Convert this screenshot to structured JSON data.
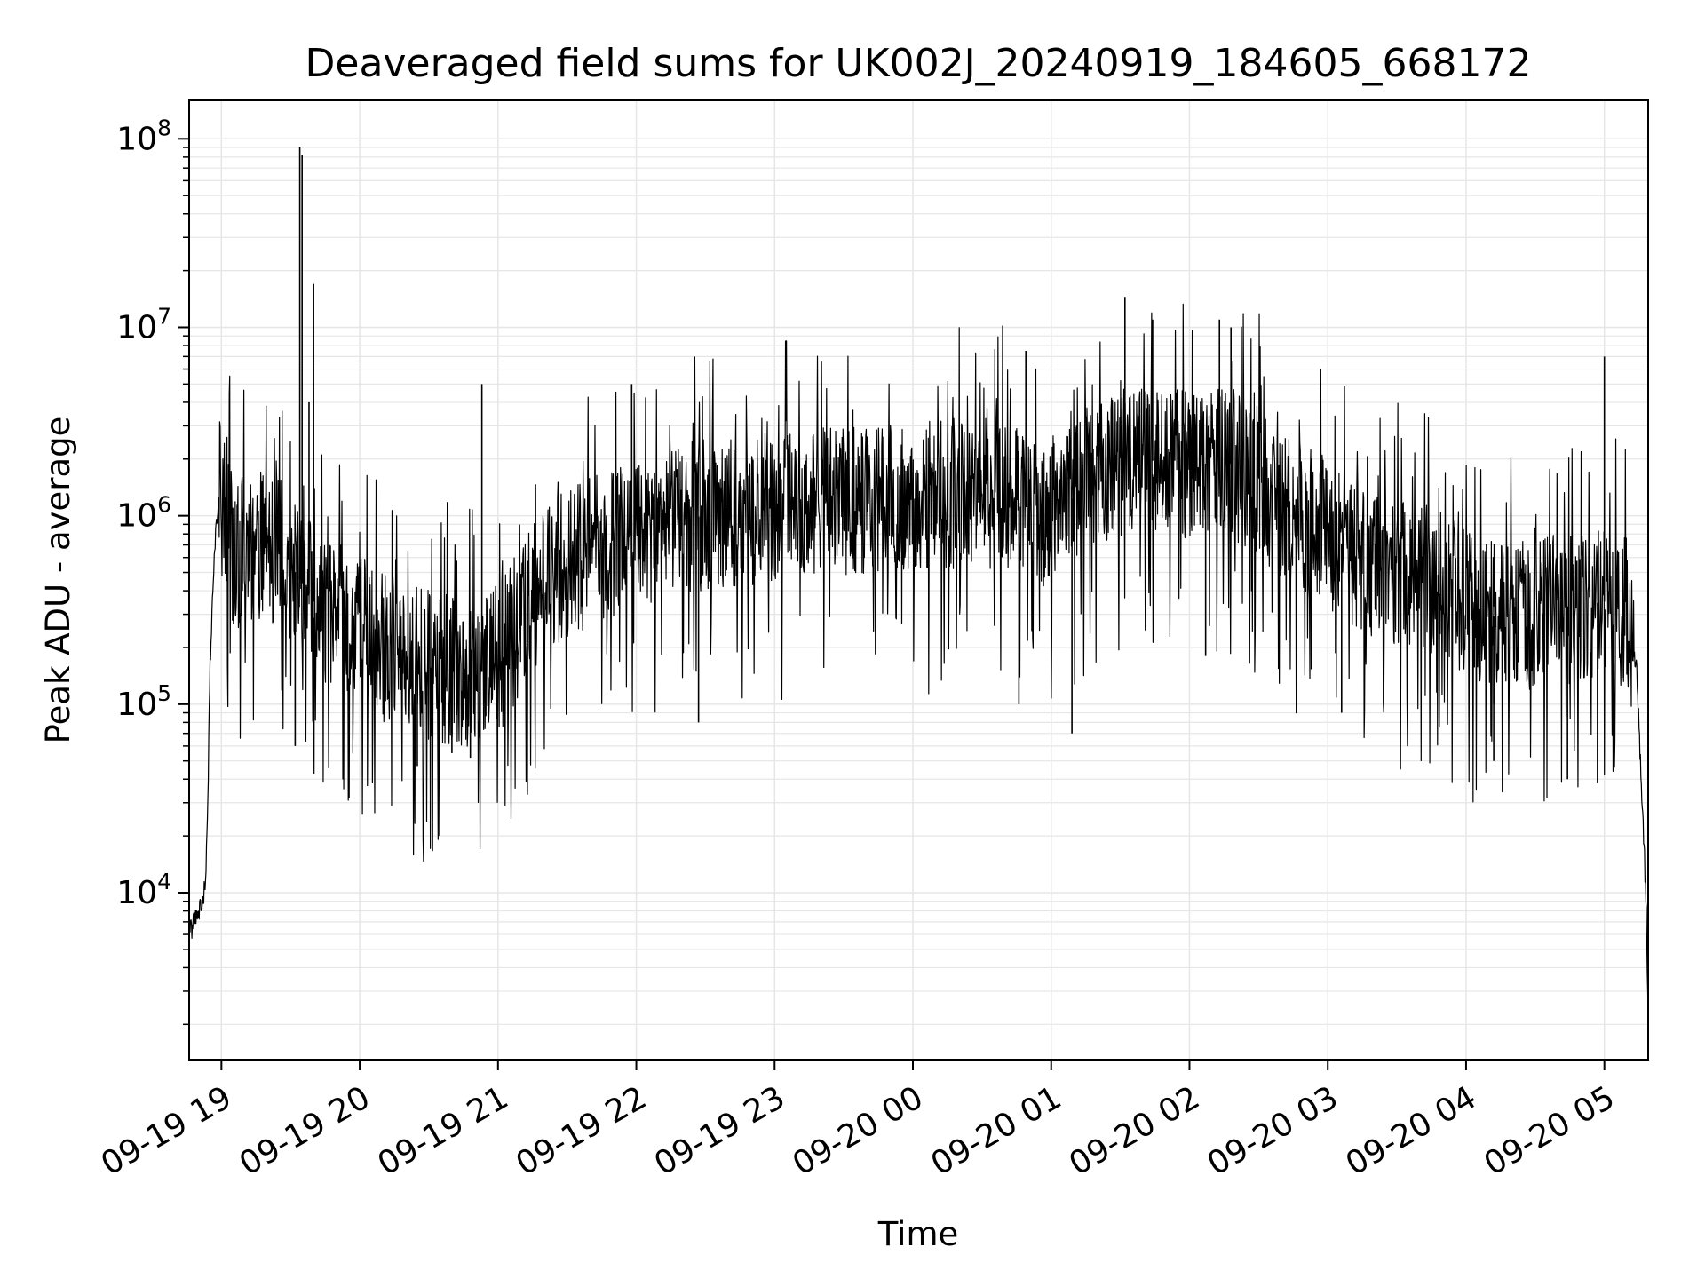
{
  "chart_data": {
    "type": "line",
    "title": "Deaveraged field sums for UK002J_20240919_184605_668172",
    "xlabel": "Time",
    "ylabel": "Peak ADU - average",
    "y_scale": "log",
    "ylim": [
      1300,
      160000000
    ],
    "xlim": [
      "2024-09-19 18:46",
      "2024-09-20 05:19"
    ],
    "grid": true,
    "legend": "none",
    "line_color": "#000000",
    "grid_color": "#e6e6e6",
    "x_ticks": [
      {
        "t": "2024-09-19 19:00",
        "label": "09-19 19"
      },
      {
        "t": "2024-09-19 20:00",
        "label": "09-19 20"
      },
      {
        "t": "2024-09-19 21:00",
        "label": "09-19 21"
      },
      {
        "t": "2024-09-19 22:00",
        "label": "09-19 22"
      },
      {
        "t": "2024-09-19 23:00",
        "label": "09-19 23"
      },
      {
        "t": "2024-09-20 00:00",
        "label": "09-20 00"
      },
      {
        "t": "2024-09-20 01:00",
        "label": "09-20 01"
      },
      {
        "t": "2024-09-20 02:00",
        "label": "09-20 02"
      },
      {
        "t": "2024-09-20 03:00",
        "label": "09-20 03"
      },
      {
        "t": "2024-09-20 04:00",
        "label": "09-20 04"
      },
      {
        "t": "2024-09-20 05:00",
        "label": "09-20 05"
      }
    ],
    "y_ticks": [
      {
        "value": 10000,
        "base": "10",
        "exp": "4"
      },
      {
        "value": 100000,
        "base": "10",
        "exp": "5"
      },
      {
        "value": 1000000,
        "base": "10",
        "exp": "6"
      },
      {
        "value": 10000000,
        "base": "10",
        "exp": "7"
      },
      {
        "value": 100000000,
        "base": "10",
        "exp": "8"
      }
    ],
    "series": [
      {
        "points": [
          [
            "2024-09-19 18:46",
            6000
          ],
          [
            "2024-09-19 18:48",
            7000
          ],
          [
            "2024-09-19 18:50",
            8000
          ],
          [
            "2024-09-19 18:52",
            9500
          ],
          [
            "2024-09-19 18:53",
            11000
          ],
          [
            "2024-09-19 18:54",
            25000
          ],
          [
            "2024-09-19 18:55",
            150000
          ],
          [
            "2024-09-19 18:57",
            700000
          ],
          [
            "2024-09-19 18:59",
            1300000
          ],
          [
            "2024-09-19 19:00",
            1200000
          ],
          [
            "2024-09-19 19:03",
            1000000
          ],
          [
            "2024-09-19 19:05",
            600000
          ],
          [
            "2024-09-19 19:15",
            700000
          ],
          [
            "2024-09-19 19:25",
            650000
          ],
          [
            "2024-09-19 19:30",
            550000
          ],
          [
            "2024-09-19 19:40",
            350000
          ],
          [
            "2024-09-19 19:50",
            300000
          ],
          [
            "2024-09-19 20:00",
            250000
          ],
          [
            "2024-09-19 20:10",
            200000
          ],
          [
            "2024-09-19 20:20",
            180000
          ],
          [
            "2024-09-19 20:30",
            160000
          ],
          [
            "2024-09-19 20:40",
            150000
          ],
          [
            "2024-09-19 20:50",
            140000
          ],
          [
            "2024-09-19 21:00",
            170000
          ],
          [
            "2024-09-19 21:10",
            280000
          ],
          [
            "2024-09-19 21:20",
            450000
          ],
          [
            "2024-09-19 21:30",
            550000
          ],
          [
            "2024-09-19 21:45",
            700000
          ],
          [
            "2024-09-19 22:00",
            800000
          ],
          [
            "2024-09-19 22:15",
            950000
          ],
          [
            "2024-09-19 22:30",
            1000000
          ],
          [
            "2024-09-19 22:45",
            1050000
          ],
          [
            "2024-09-19 23:00",
            1100000
          ],
          [
            "2024-09-19 23:20",
            1150000
          ],
          [
            "2024-09-19 23:40",
            1200000
          ],
          [
            "2024-09-20 00:00",
            1250000
          ],
          [
            "2024-09-20 00:20",
            1300000
          ],
          [
            "2024-09-20 00:40",
            1300000
          ],
          [
            "2024-09-20 00:55",
            1000000
          ],
          [
            "2024-09-20 01:05",
            1100000
          ],
          [
            "2024-09-20 01:20",
            1700000
          ],
          [
            "2024-09-20 01:40",
            2000000
          ],
          [
            "2024-09-20 02:00",
            1800000
          ],
          [
            "2024-09-20 02:15",
            2000000
          ],
          [
            "2024-09-20 02:30",
            1500000
          ],
          [
            "2024-09-20 02:45",
            1000000
          ],
          [
            "2024-09-20 03:00",
            800000
          ],
          [
            "2024-09-20 03:15",
            600000
          ],
          [
            "2024-09-20 03:30",
            500000
          ],
          [
            "2024-09-20 03:45",
            450000
          ],
          [
            "2024-09-20 04:00",
            350000
          ],
          [
            "2024-09-20 04:15",
            280000
          ],
          [
            "2024-09-20 04:30",
            300000
          ],
          [
            "2024-09-20 04:45",
            320000
          ],
          [
            "2024-09-20 05:00",
            350000
          ],
          [
            "2024-09-20 05:10",
            300000
          ],
          [
            "2024-09-20 05:14",
            150000
          ],
          [
            "2024-09-20 05:16",
            40000
          ],
          [
            "2024-09-20 05:18",
            10000
          ],
          [
            "2024-09-20 05:19",
            2300
          ]
        ]
      }
    ],
    "spikes": [
      [
        "2024-09-19 19:34",
        90000000
      ],
      [
        "2024-09-19 19:35",
        82000000
      ],
      [
        "2024-09-19 19:40",
        17000000
      ],
      [
        "2024-09-19 19:38",
        4000000
      ],
      [
        "2024-09-19 20:53",
        5000000
      ],
      [
        "2024-09-19 21:58",
        5000000
      ],
      [
        "2024-09-20 00:49",
        7500000
      ],
      [
        "2024-09-20 01:32",
        14500000
      ],
      [
        "2024-09-20 01:44",
        11000000
      ],
      [
        "2024-09-20 02:13",
        11000000
      ],
      [
        "2024-09-20 02:18",
        10000000
      ],
      [
        "2024-09-20 05:00",
        7000000
      ],
      [
        "2024-09-20 04:12",
        100000
      ],
      [
        "2024-09-20 04:44",
        40000
      ],
      [
        "2024-09-20 00:46",
        100000
      ]
    ],
    "dips": [
      [
        "2024-09-19 19:32",
        60000
      ],
      [
        "2024-09-19 20:25",
        47000
      ],
      [
        "2024-09-19 20:40",
        55000
      ],
      [
        "2024-09-19 20:48",
        52000
      ],
      [
        "2024-09-19 22:27",
        80000
      ],
      [
        "2024-09-20 01:09",
        70000
      ],
      [
        "2024-09-20 02:07",
        180000
      ],
      [
        "2024-09-20 03:06",
        90000
      ],
      [
        "2024-09-20 04:12",
        50000
      ],
      [
        "2024-09-20 04:57",
        38000
      ]
    ]
  }
}
